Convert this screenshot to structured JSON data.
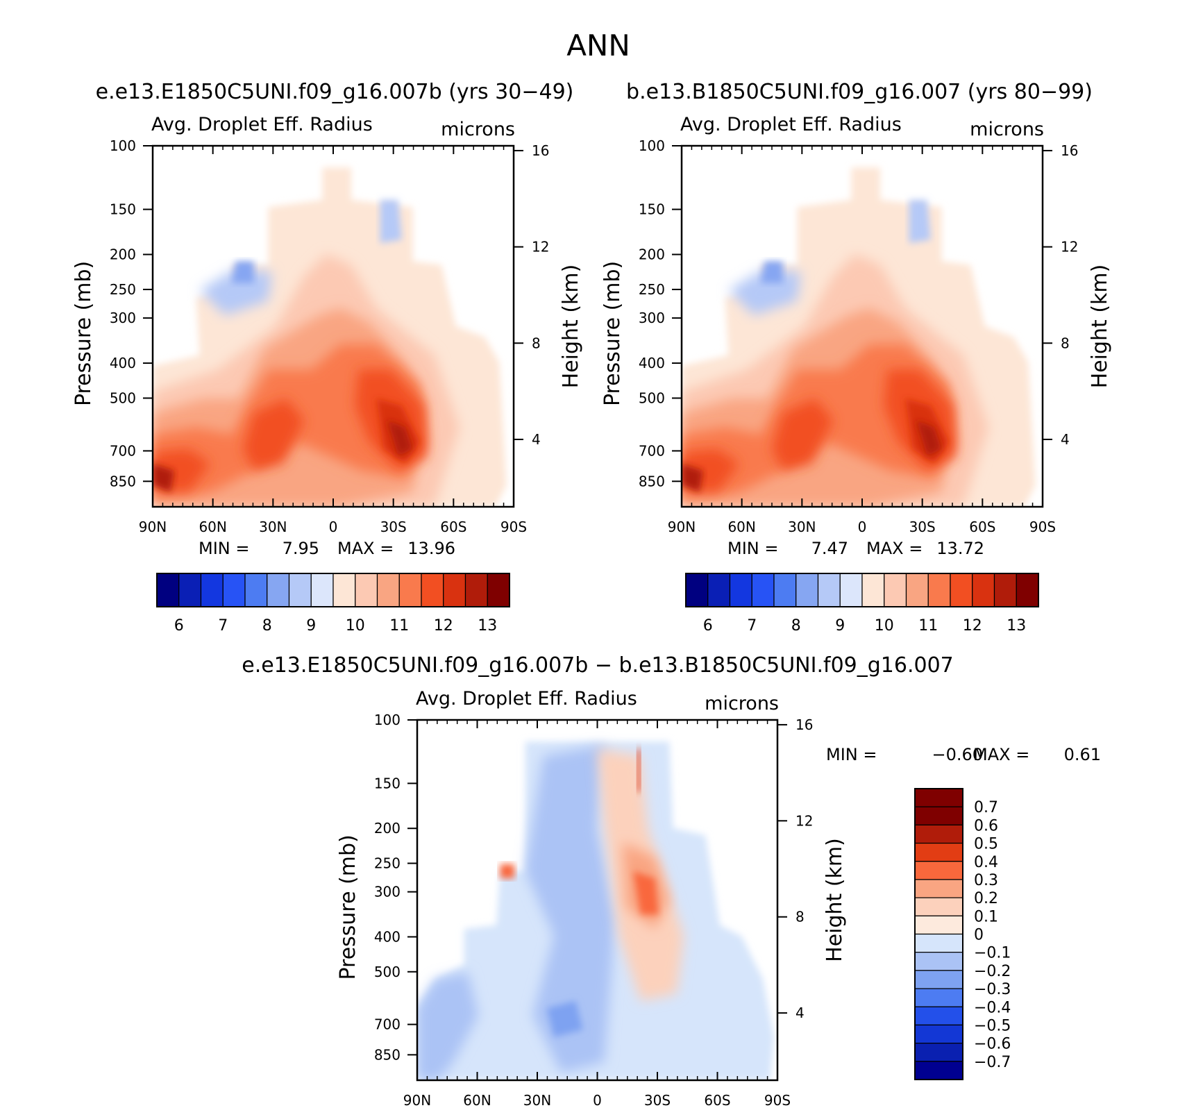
{
  "figure": {
    "title": "ANN",
    "case1_title": "e.e13.E1850C5UNI.f09_g16.007b (yrs 30−49)",
    "case2_title": "b.e13.B1850C5UNI.f09_g16.007 (yrs 80−99)",
    "diff_title": "e.e13.E1850C5UNI.f09_g16.007b − b.e13.B1850C5UNI.f09_g16.007"
  },
  "chart_data": [
    {
      "type": "heatmap",
      "id": "case1",
      "title": "Avg. Droplet Eff. Radius",
      "units": "microns",
      "ylabel": "Pressure (mb)",
      "y2label": "Height (km)",
      "x_ticks": [
        "90N",
        "60N",
        "30N",
        "0",
        "30S",
        "60S",
        "90S"
      ],
      "y_ticks": [
        100,
        150,
        200,
        250,
        300,
        400,
        500,
        700,
        850
      ],
      "y2_ticks": [
        4,
        8,
        12,
        16
      ],
      "xlim": [
        -90,
        90
      ],
      "ylim": [
        100,
        1000
      ],
      "yscale": "log",
      "min_label": "MIN =",
      "min_value": "7.95",
      "max_label": "MAX =",
      "max_value": "13.96",
      "colorbar_labels": [
        "6",
        "7",
        "8",
        "9",
        "10",
        "11",
        "12",
        "13"
      ],
      "colorbar_orientation": "horizontal"
    },
    {
      "type": "heatmap",
      "id": "case2",
      "title": "Avg. Droplet Eff. Radius",
      "units": "microns",
      "ylabel": "Pressure (mb)",
      "y2label": "Height (km)",
      "x_ticks": [
        "90N",
        "60N",
        "30N",
        "0",
        "30S",
        "60S",
        "90S"
      ],
      "y_ticks": [
        100,
        150,
        200,
        250,
        300,
        400,
        500,
        700,
        850
      ],
      "y2_ticks": [
        4,
        8,
        12,
        16
      ],
      "xlim": [
        -90,
        90
      ],
      "ylim": [
        100,
        1000
      ],
      "yscale": "log",
      "min_label": "MIN =",
      "min_value": "7.47",
      "max_label": "MAX =",
      "max_value": "13.72",
      "colorbar_labels": [
        "6",
        "7",
        "8",
        "9",
        "10",
        "11",
        "12",
        "13"
      ],
      "colorbar_orientation": "horizontal"
    },
    {
      "type": "heatmap",
      "id": "diff",
      "title": "Avg. Droplet Eff. Radius",
      "units": "microns",
      "ylabel": "Pressure (mb)",
      "y2label": "Height (km)",
      "x_ticks": [
        "90N",
        "60N",
        "30N",
        "0",
        "30S",
        "60S",
        "90S"
      ],
      "y_ticks": [
        100,
        150,
        200,
        250,
        300,
        400,
        500,
        700,
        850
      ],
      "y2_ticks": [
        4,
        8,
        12,
        16
      ],
      "xlim": [
        -90,
        90
      ],
      "ylim": [
        100,
        1000
      ],
      "yscale": "log",
      "min_label": "MIN =",
      "min_value": "−0.60",
      "max_label": "MAX =",
      "max_value": "0.61",
      "colorbar_labels": [
        "0.7",
        "0.6",
        "0.5",
        "0.4",
        "0.3",
        "0.2",
        "0.1",
        "0",
        "−0.1",
        "−0.2",
        "−0.3",
        "−0.4",
        "−0.5",
        "−0.6",
        "−0.7"
      ],
      "colorbar_orientation": "vertical"
    }
  ],
  "palettes": {
    "absolute": [
      "#000080",
      "#0a1fb5",
      "#1337e0",
      "#2753f5",
      "#4d7cf2",
      "#86a6f2",
      "#b5c9f7",
      "#dce6fb",
      "#fde6d6",
      "#fcc9b3",
      "#f9a582",
      "#f97a4d",
      "#f24f22",
      "#d93210",
      "#b01c0a",
      "#7f0000"
    ],
    "diff": [
      "#7f0000",
      "#b01c0a",
      "#e23d14",
      "#f9683c",
      "#f9a582",
      "#fcd1bc",
      "#fdeadd",
      "#d6e5fb",
      "#abc3f5",
      "#7ea2f1",
      "#4d7cf2",
      "#2350ea",
      "#1337d5",
      "#0a20b0",
      "#000090"
    ]
  }
}
